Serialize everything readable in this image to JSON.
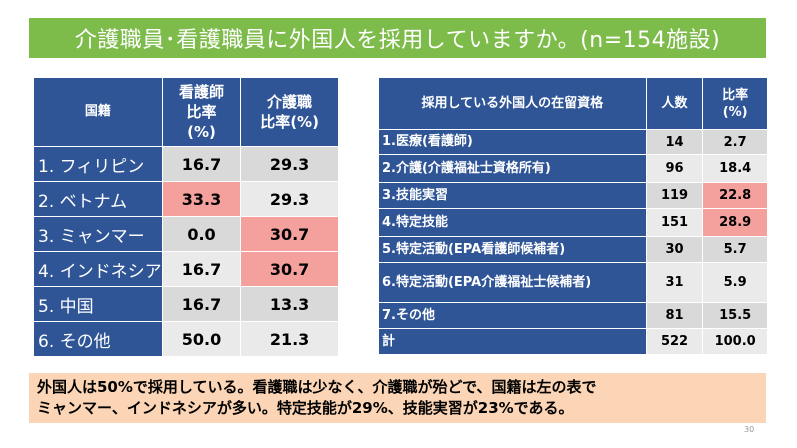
{
  "title": "介護職員･看護職員に外国人を採用していますか。(n=154施設)",
  "nationality_table": {
    "headers": {
      "country": "国籍",
      "nurse_line1": "看護師",
      "nurse_line2": "比率",
      "nurse_line3": "(%)",
      "care_line1": "介護職",
      "care_line2": "比率(%)"
    },
    "rows": [
      {
        "country": "1. フィリピン",
        "nurse": "16.7",
        "care": "29.3"
      },
      {
        "country": "2. ベトナム",
        "nurse": "33.3",
        "care": "29.3"
      },
      {
        "country": "3. ミャンマー",
        "nurse": "0.0",
        "care": "30.7"
      },
      {
        "country": "4. インドネシア",
        "nurse": "16.7",
        "care": "30.7"
      },
      {
        "country": "5. 中国",
        "nurse": "16.7",
        "care": "13.3"
      },
      {
        "country": "6. その他",
        "nurse": "50.0",
        "care": "21.3"
      }
    ]
  },
  "status_table": {
    "headers": {
      "status": "採用している外国人の在留資格",
      "count": "人数",
      "ratio_line1": "比率",
      "ratio_line2": "(%)"
    },
    "rows": [
      {
        "label": "1.医療(看護師)",
        "count": "14",
        "ratio": "2.7"
      },
      {
        "label": "2.介護(介護福祉士資格所有)",
        "count": "96",
        "ratio": "18.4"
      },
      {
        "label": "3.技能実習",
        "count": "119",
        "ratio": "22.8"
      },
      {
        "label": "4.特定技能",
        "count": "151",
        "ratio": "28.9"
      },
      {
        "label": "5.特定活動(EPA看護師候補者)",
        "count": "30",
        "ratio": "5.7"
      },
      {
        "label": "6.特定活動(EPA介護福祉士候補者)",
        "count": "31",
        "ratio": "5.9"
      },
      {
        "label": "7.その他",
        "count": "81",
        "ratio": "15.5"
      },
      {
        "label": "計",
        "count": "522",
        "ratio": "100.0"
      }
    ]
  },
  "summary": {
    "line1": "外国人は50%で採用している。看護職は少なく、介護職が殆どで、国籍は左の表で",
    "line2": "ミャンマー、インドネシアが多い。特定技能が29%、技能実習が23%である。"
  },
  "page_number": "30",
  "colors": {
    "title_bg": "#7dbb4a",
    "header_bg": "#2f5597",
    "highlight": "#f4a09c",
    "summary_bg": "#fbd5b5"
  }
}
